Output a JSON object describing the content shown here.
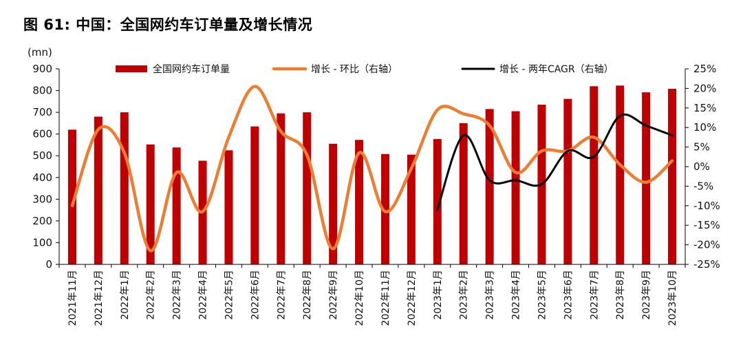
{
  "title": "图 61: 中国：全国网约车订单量及增长情况",
  "chart_data": {
    "type": "bar",
    "categories": [
      "2021年11月",
      "2021年12月",
      "2022年1月",
      "2022年2月",
      "2022年3月",
      "2022年4月",
      "2022年5月",
      "2022年6月",
      "2022年7月",
      "2022年8月",
      "2022年9月",
      "2022年10月",
      "2022年11月",
      "2022年12月",
      "2023年1月",
      "2023年2月",
      "2023年3月",
      "2023年4月",
      "2023年5月",
      "2023年6月",
      "2023年7月",
      "2023年8月",
      "2023年9月",
      "2023年10月"
    ],
    "ylabel": "(mn)",
    "ylim": [
      0,
      900
    ],
    "yticks": [
      "0",
      "100",
      "200",
      "300",
      "400",
      "500",
      "600",
      "700",
      "800",
      "900"
    ],
    "y2lim": [
      -25,
      25
    ],
    "y2ticks": [
      "-25%",
      "-20%",
      "-15%",
      "-10%",
      "-5%",
      "0%",
      "5%",
      "10%",
      "15%",
      "20%",
      "25%"
    ],
    "legend_position": "top",
    "grid": false,
    "series": [
      {
        "name": "全国网约车订单量",
        "type": "bar",
        "axis": "left",
        "color": "#c00000",
        "values": [
          620,
          680,
          700,
          552,
          538,
          477,
          525,
          635,
          695,
          700,
          555,
          573,
          508,
          505,
          577,
          650,
          715,
          705,
          735,
          762,
          820,
          823,
          792,
          808
        ]
      },
      {
        "name": "增长 - 环比（右轴）",
        "type": "line",
        "axis": "right",
        "color": "#ed7d31",
        "values": [
          -10.0,
          9.5,
          3.5,
          -21.5,
          -1.5,
          -11.5,
          7.5,
          20.5,
          9.0,
          3.0,
          -21.0,
          3.5,
          -11.5,
          -0.5,
          14.5,
          13.5,
          10.5,
          -1.5,
          4.0,
          4.0,
          7.5,
          0.5,
          -4.0,
          1.5
        ]
      },
      {
        "name": "增长 - 两年CAGR（右轴）",
        "type": "line",
        "axis": "right",
        "color": "#000000",
        "values": [
          null,
          null,
          null,
          null,
          null,
          null,
          null,
          null,
          null,
          null,
          null,
          null,
          null,
          null,
          -11.0,
          8.0,
          -3.5,
          -3.5,
          -4.5,
          4.0,
          2.5,
          13.0,
          10.5,
          8.0
        ]
      }
    ]
  }
}
